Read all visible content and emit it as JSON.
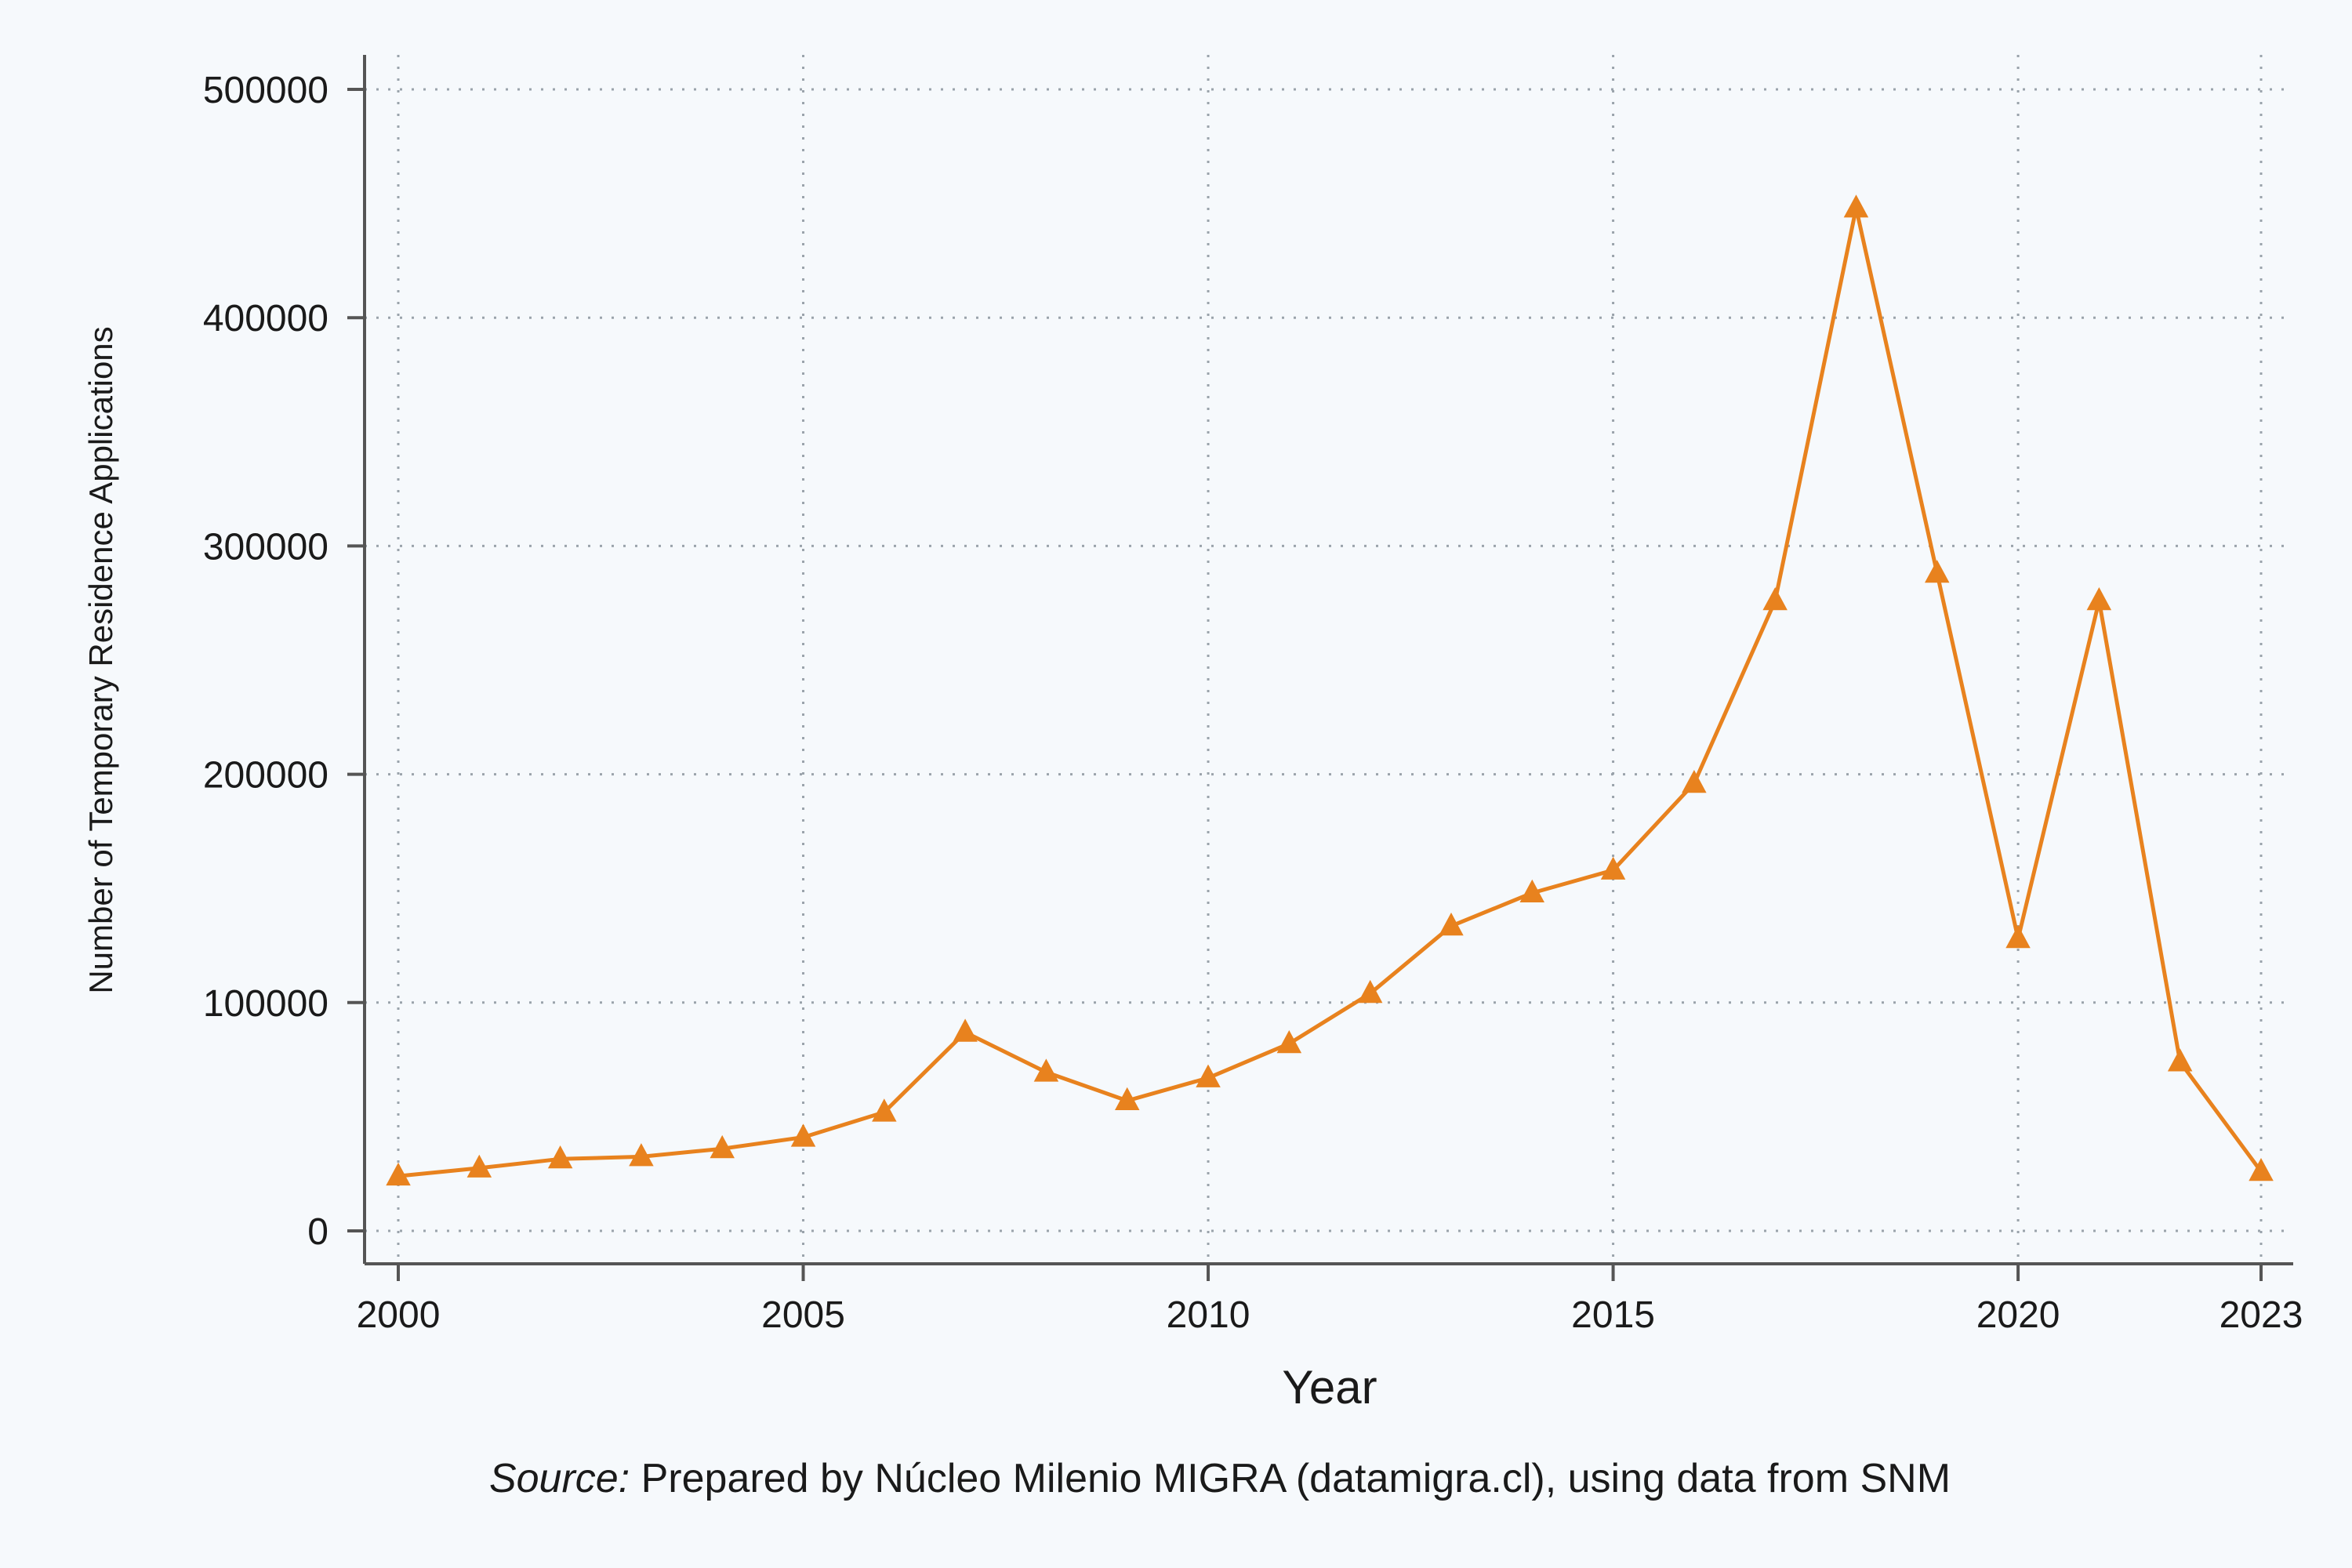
{
  "chart_data": {
    "type": "line",
    "xlabel": "Year",
    "ylabel": "Number of Temporary Residence Applications",
    "xlim": [
      2000,
      2023
    ],
    "ylim": [
      0,
      500000
    ],
    "x_ticks": [
      2000,
      2005,
      2010,
      2015,
      2020,
      2023
    ],
    "x_tick_labels": [
      "2000",
      "2005",
      "2010",
      "2015",
      "2020",
      "2023"
    ],
    "y_ticks": [
      0,
      100000,
      200000,
      300000,
      400000,
      500000
    ],
    "y_tick_labels": [
      "0",
      "100000",
      "200000",
      "300000",
      "400000",
      "500000"
    ],
    "grid": true,
    "marker": "triangle",
    "color": "#e8821e",
    "series": [
      {
        "x": [
          2000,
          2001,
          2002,
          2003,
          2004,
          2005,
          2006,
          2007,
          2008,
          2009,
          2010,
          2011,
          2012,
          2013,
          2014,
          2015,
          2016,
          2017,
          2018,
          2019,
          2020,
          2021,
          2022,
          2023
        ],
        "values": [
          24000,
          27500,
          31500,
          32500,
          36000,
          41000,
          52000,
          87000,
          69500,
          57000,
          67000,
          82000,
          104000,
          133500,
          148000,
          158000,
          196000,
          276000,
          448000,
          288000,
          128000,
          276000,
          74000,
          26000
        ]
      }
    ]
  },
  "source": {
    "prefix": "Source:",
    "text": " Prepared by Núcleo Milenio MIGRA (datamigra.cl), using data from SNM"
  }
}
